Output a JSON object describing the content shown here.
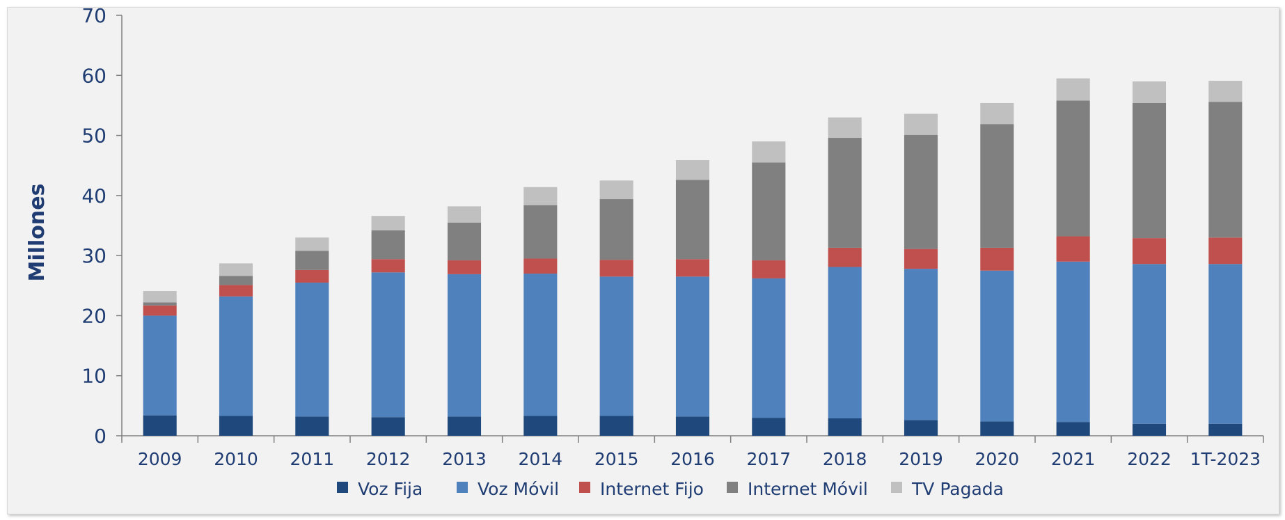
{
  "chart_data": {
    "type": "bar",
    "stacked": true,
    "title": "",
    "xlabel": "",
    "ylabel": "Millones",
    "ylim": [
      0,
      70
    ],
    "yticks": [
      "0",
      "10",
      "20",
      "30",
      "40",
      "50",
      "60",
      "70"
    ],
    "grid": false,
    "legend_position": "bottom",
    "categories": [
      "2009",
      "2010",
      "2011",
      "2012",
      "2013",
      "2014",
      "2015",
      "2016",
      "2017",
      "2018",
      "2019",
      "2020",
      "2021",
      "2022",
      "1T-2023"
    ],
    "series": [
      {
        "name": "Voz Fija",
        "color": "#1f497d",
        "values": [
          3.4,
          3.3,
          3.2,
          3.1,
          3.2,
          3.3,
          3.3,
          3.2,
          3.0,
          2.9,
          2.6,
          2.4,
          2.3,
          2.0,
          2.0
        ]
      },
      {
        "name": "Voz Móvil",
        "color": "#4f81bd",
        "values": [
          16.6,
          19.9,
          22.3,
          24.1,
          23.7,
          23.7,
          23.2,
          23.3,
          23.2,
          25.2,
          25.2,
          25.1,
          26.7,
          26.6,
          26.6
        ]
      },
      {
        "name": "Internet Fijo",
        "color": "#c0504d",
        "values": [
          1.7,
          1.9,
          2.1,
          2.2,
          2.3,
          2.5,
          2.8,
          2.9,
          3.0,
          3.2,
          3.3,
          3.8,
          4.2,
          4.3,
          4.4
        ]
      },
      {
        "name": "Internet Móvil",
        "color": "#808080",
        "values": [
          0.5,
          1.5,
          3.2,
          4.8,
          6.3,
          8.9,
          10.1,
          13.2,
          16.3,
          18.3,
          19.0,
          20.6,
          22.6,
          22.5,
          22.6
        ]
      },
      {
        "name": "TV Pagada",
        "color": "#c0c0c0",
        "values": [
          1.9,
          2.1,
          2.2,
          2.4,
          2.7,
          3.0,
          3.1,
          3.3,
          3.5,
          3.4,
          3.5,
          3.5,
          3.7,
          3.6,
          3.5
        ]
      }
    ]
  }
}
